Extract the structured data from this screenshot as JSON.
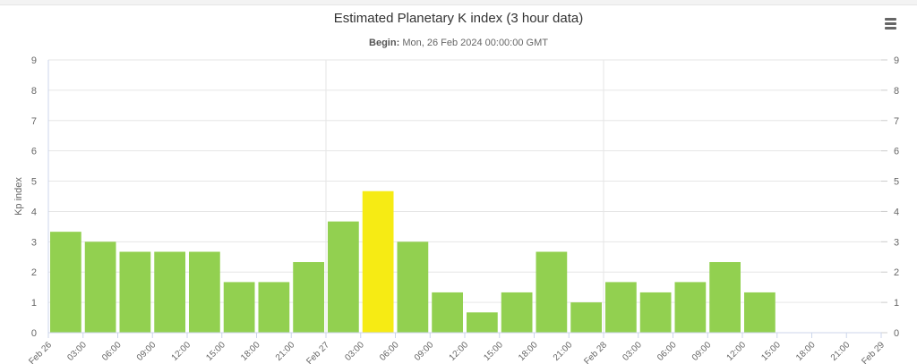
{
  "chart_data": {
    "type": "bar",
    "title": "Estimated Planetary K index (3 hour data)",
    "subtitle_label": "Begin:",
    "subtitle_value": "Mon, 26 Feb 2024 00:00:00 GMT",
    "ylabel": "Kp index",
    "xlabel": "",
    "ylim": [
      0,
      9
    ],
    "yticks": [
      "0",
      "1",
      "2",
      "3",
      "4",
      "5",
      "6",
      "7",
      "8",
      "9"
    ],
    "xticks": [
      "Feb 26",
      "03:00",
      "06:00",
      "09:00",
      "12:00",
      "15:00",
      "18:00",
      "21:00",
      "Feb 27",
      "03:00",
      "06:00",
      "09:00",
      "12:00",
      "15:00",
      "18:00",
      "21:00",
      "Feb 28",
      "03:00",
      "06:00",
      "09:00",
      "12:00",
      "15:00",
      "18:00",
      "21:00",
      "Feb 29"
    ],
    "values": [
      3.33,
      3.0,
      2.67,
      2.67,
      2.67,
      1.67,
      1.67,
      2.33,
      3.67,
      4.67,
      3.0,
      1.33,
      0.67,
      1.33,
      2.67,
      1.0,
      1.67,
      1.33,
      1.67,
      2.33,
      1.33
    ],
    "colors": {
      "quiet": "#92d050",
      "active": "#f6eb14",
      "grid": "#e6e6e6",
      "axis_text": "#666666"
    },
    "active_threshold": 4,
    "grid": true,
    "legend": "none"
  },
  "menu": {
    "icon": "hamburger-icon"
  }
}
